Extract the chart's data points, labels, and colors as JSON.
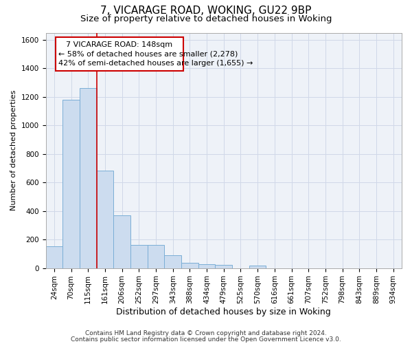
{
  "title1": "7, VICARAGE ROAD, WOKING, GU22 9BP",
  "title2": "Size of property relative to detached houses in Woking",
  "xlabel": "Distribution of detached houses by size in Woking",
  "ylabel": "Number of detached properties",
  "categories": [
    "24sqm",
    "70sqm",
    "115sqm",
    "161sqm",
    "206sqm",
    "252sqm",
    "297sqm",
    "343sqm",
    "388sqm",
    "434sqm",
    "479sqm",
    "525sqm",
    "570sqm",
    "616sqm",
    "661sqm",
    "707sqm",
    "752sqm",
    "798sqm",
    "843sqm",
    "889sqm",
    "934sqm"
  ],
  "bar_heights": [
    150,
    1180,
    1260,
    685,
    370,
    160,
    160,
    90,
    35,
    25,
    20,
    0,
    15,
    0,
    0,
    0,
    0,
    0,
    0,
    0,
    0
  ],
  "bar_color": "#ccdcef",
  "bar_edge_color": "#7aaed6",
  "grid_color": "#d0d8e8",
  "background_color": "#eef2f8",
  "ylim": [
    0,
    1650
  ],
  "yticks": [
    0,
    200,
    400,
    600,
    800,
    1000,
    1200,
    1400,
    1600
  ],
  "annotation_line1": "7 VICARAGE ROAD: 148sqm",
  "annotation_line2": "← 58% of detached houses are smaller (2,278)",
  "annotation_line3": "42% of semi-detached houses are larger (1,655) →",
  "annotation_box_color": "#cc0000",
  "property_line_x": 3.0,
  "footer1": "Contains HM Land Registry data © Crown copyright and database right 2024.",
  "footer2": "Contains public sector information licensed under the Open Government Licence v3.0.",
  "title1_fontsize": 11,
  "title2_fontsize": 9.5,
  "xlabel_fontsize": 9,
  "ylabel_fontsize": 8,
  "tick_fontsize": 7.5,
  "annotation_fontsize": 8,
  "footer_fontsize": 6.5
}
